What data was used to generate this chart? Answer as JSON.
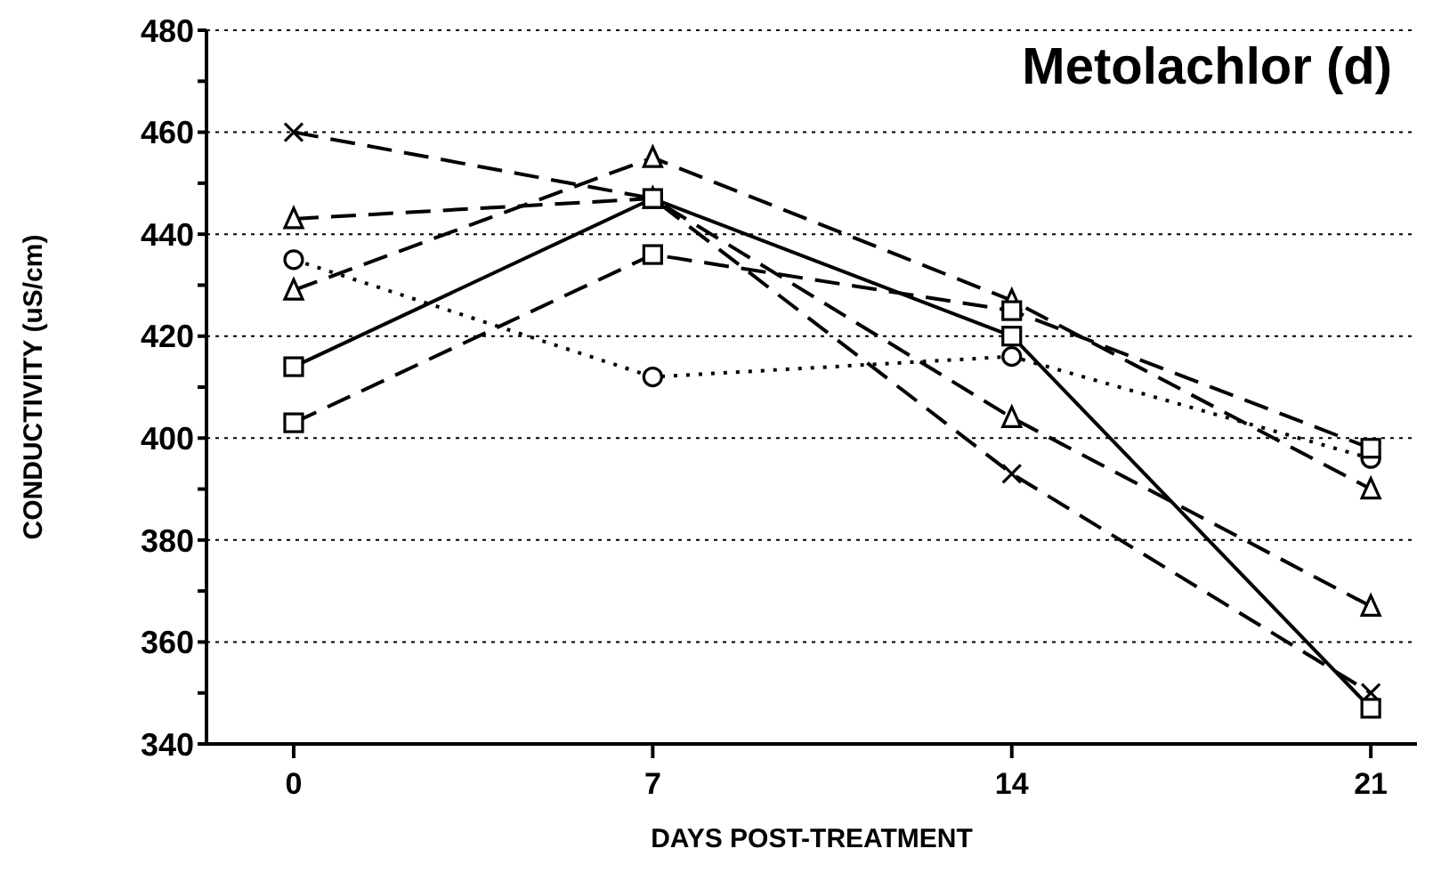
{
  "chart_data": {
    "type": "line",
    "title": "Metolachlor (d)",
    "xlabel": "DAYS POST-TREATMENT",
    "ylabel": "CONDUCTIVITY (uS/cm)",
    "x": [
      0,
      7,
      14,
      21
    ],
    "xlim": [
      -1.7,
      21.9
    ],
    "xticks": [
      0,
      7,
      14,
      21
    ],
    "ylim": [
      340,
      480
    ],
    "yticks": [
      340,
      {
        "value": 350,
        "label": null
      },
      360,
      {
        "value": 370,
        "label": null
      },
      380,
      {
        "value": 390,
        "label": null
      },
      400,
      {
        "value": 410,
        "label": null
      },
      420,
      {
        "value": 430,
        "label": null
      },
      440,
      {
        "value": 450,
        "label": null
      },
      460,
      {
        "value": 470,
        "label": null
      },
      480
    ],
    "grid": "y",
    "legend": false,
    "series": [
      {
        "color": "#000000",
        "marker": "cross",
        "line_style": "dashed",
        "values": [
          460,
          447,
          393,
          350
        ]
      },
      {
        "color": "#000000",
        "marker": "triangle",
        "line_style": "dashed",
        "values": [
          443,
          447,
          404,
          367
        ]
      },
      {
        "color": "#000000",
        "marker": "triangle",
        "line_style": "dashed",
        "values": [
          429,
          455,
          427,
          390
        ]
      },
      {
        "color": "#000000",
        "marker": "circle",
        "line_style": "dotted",
        "values": [
          435,
          412,
          416,
          396
        ]
      },
      {
        "color": "#000000",
        "marker": "square",
        "line_style": "solid",
        "values": [
          414,
          447,
          420,
          347
        ]
      },
      {
        "color": "#000000",
        "marker": "square",
        "line_style": "dashed",
        "values": [
          403,
          436,
          425,
          398
        ]
      }
    ]
  }
}
